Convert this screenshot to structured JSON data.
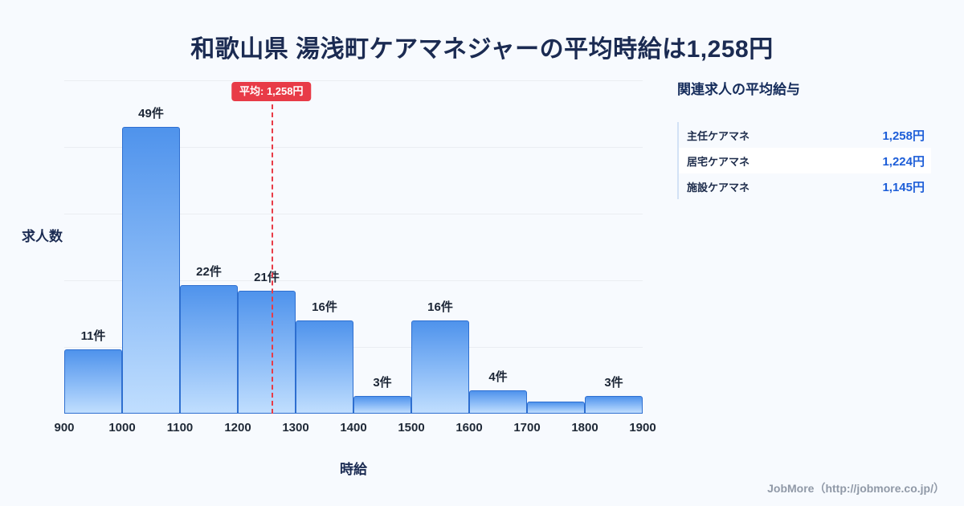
{
  "page": {
    "title": "和歌山県 湯浅町ケアマネジャーの平均時給は1,258円",
    "footer": "JobMore（http://jobmore.co.jp/）"
  },
  "chart_data": {
    "type": "bar",
    "title": "和歌山県 湯浅町ケアマネジャーの平均時給は1,258円",
    "xlabel": "時給",
    "ylabel": "求人数",
    "xlim": [
      900,
      1900
    ],
    "ylim": [
      0,
      57
    ],
    "grid": "horizontal",
    "legend": "none",
    "x_ticks": [
      "900",
      "1000",
      "1100",
      "1200",
      "1300",
      "1400",
      "1500",
      "1600",
      "1700",
      "1800",
      "1900"
    ],
    "bins": [
      {
        "range": [
          900,
          1000
        ],
        "count": 11,
        "label": "11件"
      },
      {
        "range": [
          1000,
          1100
        ],
        "count": 49,
        "label": "49件"
      },
      {
        "range": [
          1100,
          1200
        ],
        "count": 22,
        "label": "22件"
      },
      {
        "range": [
          1200,
          1300
        ],
        "count": 21,
        "label": "21件"
      },
      {
        "range": [
          1300,
          1400
        ],
        "count": 16,
        "label": "16件"
      },
      {
        "range": [
          1400,
          1500
        ],
        "count": 3,
        "label": "3件"
      },
      {
        "range": [
          1500,
          1600
        ],
        "count": 16,
        "label": "16件"
      },
      {
        "range": [
          1600,
          1700
        ],
        "count": 4,
        "label": "4件"
      },
      {
        "range": [
          1700,
          1800
        ],
        "count": 2,
        "label": ""
      },
      {
        "range": [
          1800,
          1900
        ],
        "count": 3,
        "label": "3件"
      }
    ],
    "average_line": {
      "value": 1258,
      "label": "平均: 1,258円",
      "color": "#e83b47"
    }
  },
  "side_panel": {
    "heading": "関連求人の平均給与",
    "rows": [
      {
        "label": "主任ケアマネ",
        "value": "1,258円"
      },
      {
        "label": "居宅ケアマネ",
        "value": "1,224円"
      },
      {
        "label": "施設ケアマネ",
        "value": "1,145円"
      }
    ]
  },
  "colors": {
    "accent_red": "#e83b47",
    "bar_fill_top": "#4f93ec",
    "bar_fill_bottom": "#c0defe",
    "bar_border": "#2e6fd0",
    "value_blue": "#1d5ed8",
    "title_navy": "#1b2b52",
    "background": "#f7fafe"
  }
}
